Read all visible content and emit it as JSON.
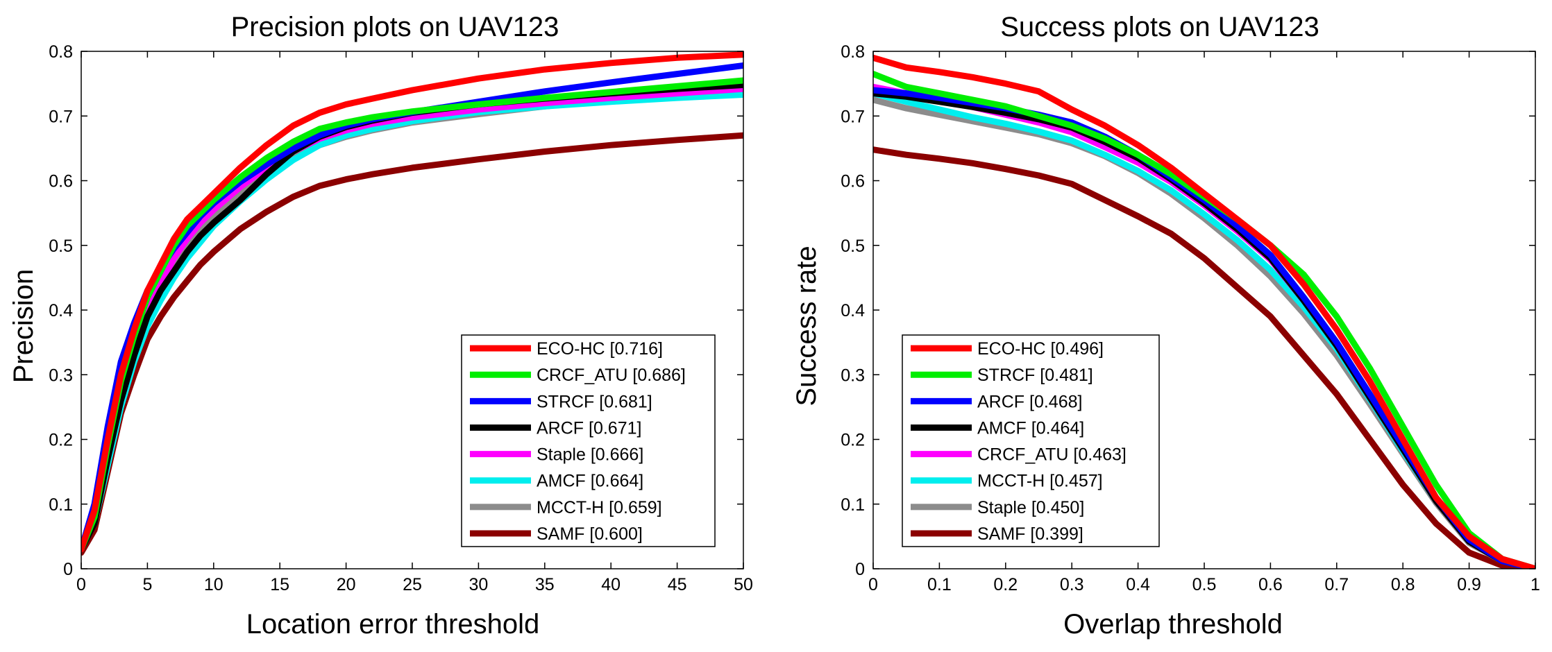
{
  "chart_data": [
    {
      "type": "line",
      "title": "Precision plots on UAV123",
      "xlabel": "Location error threshold",
      "ylabel": "Precision",
      "xlim": [
        0,
        50
      ],
      "ylim": [
        0,
        0.8
      ],
      "xticks": [
        0,
        5,
        10,
        15,
        20,
        25,
        30,
        35,
        40,
        45,
        50
      ],
      "yticks": [
        0,
        0.1,
        0.2,
        0.3,
        0.4,
        0.5,
        0.6,
        0.7,
        0.8
      ],
      "grid": false,
      "legend_position": "bottom-right",
      "series": [
        {
          "name": "ECO-HC",
          "score": "[0.716]",
          "color": "#ff0000",
          "x": [
            0,
            1,
            2,
            3,
            4,
            5,
            6,
            7,
            8,
            9,
            10,
            12,
            14,
            16,
            18,
            20,
            22,
            25,
            30,
            35,
            40,
            45,
            50
          ],
          "values": [
            0.03,
            0.09,
            0.2,
            0.3,
            0.37,
            0.43,
            0.47,
            0.51,
            0.54,
            0.56,
            0.58,
            0.62,
            0.655,
            0.685,
            0.705,
            0.718,
            0.727,
            0.74,
            0.758,
            0.772,
            0.782,
            0.79,
            0.795
          ]
        },
        {
          "name": "CRCF_ATU",
          "score": "[0.686]",
          "color": "#00ee00",
          "x": [
            0,
            1,
            2,
            3,
            4,
            5,
            6,
            7,
            8,
            9,
            10,
            12,
            14,
            16,
            18,
            20,
            22,
            25,
            30,
            35,
            40,
            45,
            50
          ],
          "values": [
            0.03,
            0.08,
            0.19,
            0.29,
            0.36,
            0.42,
            0.46,
            0.5,
            0.53,
            0.55,
            0.57,
            0.605,
            0.635,
            0.66,
            0.68,
            0.69,
            0.698,
            0.707,
            0.718,
            0.728,
            0.737,
            0.746,
            0.755
          ]
        },
        {
          "name": "STRCF",
          "score": "[0.681]",
          "color": "#0000ff",
          "x": [
            0,
            1,
            2,
            3,
            4,
            5,
            6,
            7,
            8,
            9,
            10,
            12,
            14,
            16,
            18,
            20,
            22,
            25,
            30,
            35,
            40,
            45,
            50
          ],
          "values": [
            0.03,
            0.1,
            0.22,
            0.32,
            0.38,
            0.43,
            0.465,
            0.495,
            0.52,
            0.545,
            0.565,
            0.598,
            0.625,
            0.65,
            0.67,
            0.685,
            0.695,
            0.706,
            0.722,
            0.738,
            0.752,
            0.765,
            0.778
          ]
        },
        {
          "name": "ARCF",
          "score": "[0.671]",
          "color": "#000000",
          "x": [
            0,
            1,
            2,
            3,
            4,
            5,
            6,
            7,
            8,
            9,
            10,
            12,
            14,
            16,
            18,
            20,
            22,
            25,
            30,
            35,
            40,
            45,
            50
          ],
          "values": [
            0.03,
            0.07,
            0.17,
            0.26,
            0.33,
            0.39,
            0.43,
            0.46,
            0.49,
            0.515,
            0.535,
            0.57,
            0.61,
            0.645,
            0.668,
            0.683,
            0.693,
            0.705,
            0.718,
            0.727,
            0.735,
            0.742,
            0.748
          ]
        },
        {
          "name": "Staple",
          "score": "[0.666]",
          "color": "#ff00ff",
          "x": [
            0,
            1,
            2,
            3,
            4,
            5,
            6,
            7,
            8,
            9,
            10,
            12,
            14,
            16,
            18,
            20,
            22,
            25,
            30,
            35,
            40,
            45,
            50
          ],
          "values": [
            0.03,
            0.08,
            0.18,
            0.27,
            0.34,
            0.4,
            0.44,
            0.48,
            0.51,
            0.535,
            0.555,
            0.59,
            0.62,
            0.645,
            0.665,
            0.678,
            0.688,
            0.698,
            0.71,
            0.72,
            0.728,
            0.735,
            0.742
          ]
        },
        {
          "name": "AMCF",
          "score": "[0.664]",
          "color": "#00eeee",
          "x": [
            0,
            1,
            2,
            3,
            4,
            5,
            6,
            7,
            8,
            9,
            10,
            12,
            14,
            16,
            18,
            20,
            22,
            25,
            30,
            35,
            40,
            45,
            50
          ],
          "values": [
            0.03,
            0.07,
            0.16,
            0.25,
            0.32,
            0.375,
            0.415,
            0.45,
            0.48,
            0.505,
            0.53,
            0.568,
            0.602,
            0.632,
            0.655,
            0.67,
            0.68,
            0.692,
            0.706,
            0.715,
            0.722,
            0.728,
            0.733
          ]
        },
        {
          "name": "MCCT-H",
          "score": "[0.659]",
          "color": "#8c8c8c",
          "x": [
            0,
            1,
            2,
            3,
            4,
            5,
            6,
            7,
            8,
            9,
            10,
            12,
            14,
            16,
            18,
            20,
            22,
            25,
            30,
            35,
            40,
            45,
            50
          ],
          "values": [
            0.03,
            0.08,
            0.18,
            0.27,
            0.34,
            0.395,
            0.435,
            0.47,
            0.5,
            0.525,
            0.545,
            0.58,
            0.61,
            0.635,
            0.655,
            0.668,
            0.678,
            0.69,
            0.703,
            0.715,
            0.725,
            0.732,
            0.738
          ]
        },
        {
          "name": "SAMF",
          "score": "[0.600]",
          "color": "#8b0000",
          "x": [
            0,
            1,
            2,
            3,
            4,
            5,
            6,
            7,
            8,
            9,
            10,
            12,
            14,
            16,
            18,
            20,
            22,
            25,
            30,
            35,
            40,
            45,
            50
          ],
          "values": [
            0.025,
            0.06,
            0.15,
            0.24,
            0.3,
            0.355,
            0.39,
            0.42,
            0.445,
            0.47,
            0.49,
            0.525,
            0.552,
            0.575,
            0.592,
            0.602,
            0.61,
            0.62,
            0.633,
            0.645,
            0.655,
            0.663,
            0.67
          ]
        }
      ]
    },
    {
      "type": "line",
      "title": "Success plots on UAV123",
      "xlabel": "Overlap threshold",
      "ylabel": "Success rate",
      "xlim": [
        0,
        1
      ],
      "ylim": [
        0,
        0.8
      ],
      "xticks": [
        0,
        0.1,
        0.2,
        0.3,
        0.4,
        0.5,
        0.6,
        0.7,
        0.8,
        0.9,
        1
      ],
      "yticks": [
        0,
        0.1,
        0.2,
        0.3,
        0.4,
        0.5,
        0.6,
        0.7,
        0.8
      ],
      "grid": false,
      "legend_position": "bottom-left",
      "series": [
        {
          "name": "ECO-HC",
          "score": "[0.496]",
          "color": "#ff0000",
          "x": [
            0,
            0.05,
            0.1,
            0.15,
            0.2,
            0.25,
            0.3,
            0.35,
            0.4,
            0.45,
            0.5,
            0.55,
            0.6,
            0.65,
            0.7,
            0.75,
            0.8,
            0.85,
            0.9,
            0.95,
            1
          ],
          "values": [
            0.79,
            0.775,
            0.768,
            0.76,
            0.75,
            0.738,
            0.71,
            0.685,
            0.655,
            0.62,
            0.58,
            0.54,
            0.5,
            0.44,
            0.37,
            0.29,
            0.2,
            0.11,
            0.05,
            0.015,
            0.0
          ]
        },
        {
          "name": "STRCF",
          "score": "[0.481]",
          "color": "#00ee00",
          "x": [
            0,
            0.05,
            0.1,
            0.15,
            0.2,
            0.25,
            0.3,
            0.35,
            0.4,
            0.45,
            0.5,
            0.55,
            0.6,
            0.65,
            0.7,
            0.75,
            0.8,
            0.85,
            0.9,
            0.95,
            1
          ],
          "values": [
            0.765,
            0.745,
            0.735,
            0.725,
            0.715,
            0.7,
            0.685,
            0.665,
            0.64,
            0.61,
            0.575,
            0.54,
            0.5,
            0.455,
            0.39,
            0.31,
            0.22,
            0.13,
            0.055,
            0.015,
            0.0
          ]
        },
        {
          "name": "ARCF",
          "score": "[0.468]",
          "color": "#0000ff",
          "x": [
            0,
            0.05,
            0.1,
            0.15,
            0.2,
            0.25,
            0.3,
            0.35,
            0.4,
            0.45,
            0.5,
            0.55,
            0.6,
            0.65,
            0.7,
            0.75,
            0.8,
            0.85,
            0.9,
            0.95,
            1
          ],
          "values": [
            0.74,
            0.735,
            0.728,
            0.72,
            0.712,
            0.702,
            0.69,
            0.668,
            0.64,
            0.605,
            0.57,
            0.53,
            0.485,
            0.42,
            0.35,
            0.27,
            0.19,
            0.11,
            0.045,
            0.012,
            0.0
          ]
        },
        {
          "name": "AMCF",
          "score": "[0.464]",
          "color": "#000000",
          "x": [
            0,
            0.05,
            0.1,
            0.15,
            0.2,
            0.25,
            0.3,
            0.35,
            0.4,
            0.45,
            0.5,
            0.55,
            0.6,
            0.65,
            0.7,
            0.75,
            0.8,
            0.85,
            0.9,
            0.95,
            1
          ],
          "values": [
            0.735,
            0.73,
            0.722,
            0.714,
            0.705,
            0.695,
            0.682,
            0.66,
            0.635,
            0.602,
            0.565,
            0.525,
            0.48,
            0.415,
            0.345,
            0.265,
            0.185,
            0.105,
            0.042,
            0.012,
            0.0
          ]
        },
        {
          "name": "CRCF_ATU",
          "score": "[0.463]",
          "color": "#ff00ff",
          "x": [
            0,
            0.05,
            0.1,
            0.15,
            0.2,
            0.25,
            0.3,
            0.35,
            0.4,
            0.45,
            0.5,
            0.55,
            0.6,
            0.65,
            0.7,
            0.75,
            0.8,
            0.85,
            0.9,
            0.95,
            1
          ],
          "values": [
            0.745,
            0.735,
            0.725,
            0.714,
            0.702,
            0.69,
            0.675,
            0.652,
            0.628,
            0.598,
            0.562,
            0.522,
            0.478,
            0.415,
            0.345,
            0.265,
            0.185,
            0.105,
            0.042,
            0.012,
            0.0
          ]
        },
        {
          "name": "MCCT-H",
          "score": "[0.457]",
          "color": "#00eeee",
          "x": [
            0,
            0.05,
            0.1,
            0.15,
            0.2,
            0.25,
            0.3,
            0.35,
            0.4,
            0.45,
            0.5,
            0.55,
            0.6,
            0.65,
            0.7,
            0.75,
            0.8,
            0.85,
            0.9,
            0.95,
            1
          ],
          "values": [
            0.735,
            0.722,
            0.71,
            0.698,
            0.688,
            0.676,
            0.662,
            0.64,
            0.615,
            0.585,
            0.548,
            0.508,
            0.462,
            0.405,
            0.34,
            0.262,
            0.182,
            0.105,
            0.042,
            0.012,
            0.0
          ]
        },
        {
          "name": "Staple",
          "score": "[0.450]",
          "color": "#8c8c8c",
          "x": [
            0,
            0.05,
            0.1,
            0.15,
            0.2,
            0.25,
            0.3,
            0.35,
            0.4,
            0.45,
            0.5,
            0.55,
            0.6,
            0.65,
            0.7,
            0.75,
            0.8,
            0.85,
            0.9,
            0.95,
            1
          ],
          "values": [
            0.725,
            0.712,
            0.702,
            0.692,
            0.682,
            0.672,
            0.658,
            0.638,
            0.612,
            0.58,
            0.542,
            0.5,
            0.452,
            0.395,
            0.33,
            0.255,
            0.178,
            0.102,
            0.04,
            0.012,
            0.0
          ]
        },
        {
          "name": "SAMF",
          "score": "[0.399]",
          "color": "#8b0000",
          "x": [
            0,
            0.05,
            0.1,
            0.15,
            0.2,
            0.25,
            0.3,
            0.35,
            0.4,
            0.45,
            0.5,
            0.55,
            0.6,
            0.65,
            0.7,
            0.75,
            0.8,
            0.85,
            0.9,
            0.95,
            1
          ],
          "values": [
            0.648,
            0.64,
            0.634,
            0.627,
            0.618,
            0.608,
            0.595,
            0.57,
            0.545,
            0.518,
            0.48,
            0.435,
            0.39,
            0.33,
            0.27,
            0.2,
            0.13,
            0.07,
            0.025,
            0.005,
            0.0
          ]
        }
      ]
    }
  ]
}
